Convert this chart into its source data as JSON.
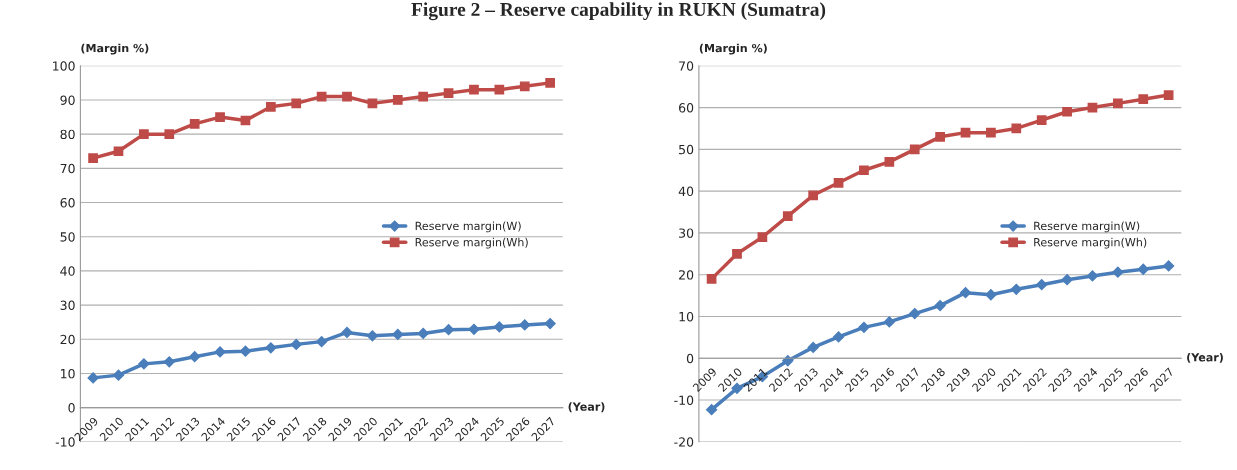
{
  "chart_data": [
    {
      "type": "line",
      "title": "Figure 2 – Reserve capability in RUKN (Sumatra)",
      "ylabel": "(Margin %)",
      "xlabel": "(Year)",
      "categories": [
        "2009",
        "2010",
        "2011",
        "2012",
        "2013",
        "2014",
        "2015",
        "2016",
        "2017",
        "2018",
        "2019",
        "2020",
        "2021",
        "2022",
        "2023",
        "2024",
        "2025",
        "2026",
        "2027"
      ],
      "series": [
        {
          "name": "Reserve margin(W)",
          "color": "#4a7ebb",
          "marker": "diamond",
          "values": [
            8.7,
            9.5,
            12.8,
            13.4,
            14.9,
            16.3,
            16.5,
            17.5,
            18.5,
            19.3,
            22.0,
            21.0,
            21.4,
            21.7,
            22.8,
            22.9,
            23.6,
            24.2,
            24.6
          ]
        },
        {
          "name": "Reserve margin(Wh)",
          "color": "#be4b48",
          "marker": "square",
          "values": [
            73,
            75,
            80,
            80,
            83,
            85,
            84,
            88,
            89,
            91,
            91,
            89,
            90,
            91,
            92,
            93,
            93,
            94,
            95
          ]
        }
      ],
      "ylim": [
        -10,
        100
      ],
      "yticks": [
        -10,
        0,
        10,
        20,
        30,
        40,
        50,
        60,
        70,
        80,
        90,
        100
      ],
      "grid": "y",
      "legend": "center right",
      "line_style": "solid"
    },
    {
      "type": "line",
      "ylabel": "(Margin %)",
      "xlabel": "(Year)",
      "categories": [
        "2009",
        "2010",
        "2011",
        "2012",
        "2013",
        "2014",
        "2015",
        "2016",
        "2017",
        "2018",
        "2019",
        "2020",
        "2021",
        "2022",
        "2023",
        "2024",
        "2025",
        "2026",
        "2027"
      ],
      "series": [
        {
          "name": "Reserve margin(W)",
          "color": "#4a7ebb",
          "marker": "diamond",
          "values": [
            -12.3,
            -7.2,
            -4.4,
            -0.6,
            2.6,
            5.1,
            7.4,
            8.7,
            10.7,
            12.6,
            15.7,
            15.2,
            16.5,
            17.6,
            18.8,
            19.7,
            20.6,
            21.3,
            22.1
          ]
        },
        {
          "name": "Reserve margin(Wh)",
          "color": "#be4b48",
          "marker": "square",
          "values": [
            19,
            25,
            29,
            34,
            39,
            42,
            45,
            47,
            50,
            53,
            54,
            54,
            55,
            57,
            59,
            60,
            61,
            62,
            63
          ]
        }
      ],
      "ylim": [
        -20,
        70
      ],
      "yticks": [
        -20,
        -10,
        0,
        10,
        20,
        30,
        40,
        50,
        60,
        70
      ],
      "grid": "y",
      "legend": "center right",
      "line_style": "solid"
    }
  ]
}
